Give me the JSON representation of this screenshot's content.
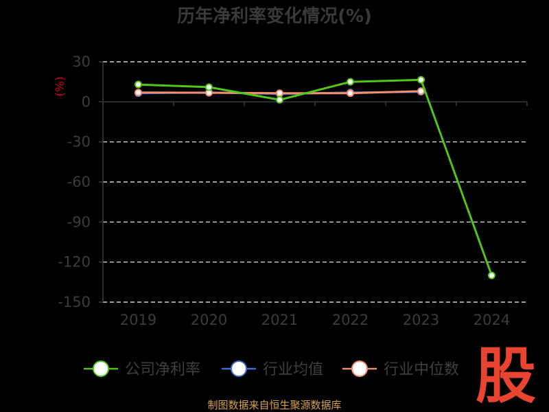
{
  "chart_data": {
    "type": "line",
    "title": "历年净利率变化情况(%)",
    "ylabel": "(%)",
    "xlabel": "",
    "categories": [
      "2019",
      "2020",
      "2021",
      "2022",
      "2023",
      "2024"
    ],
    "y_ticks": [
      "30",
      "0",
      "-30",
      "-60",
      "-90",
      "-120",
      "-150"
    ],
    "y_tick_values": [
      30,
      0,
      -30,
      -60,
      -90,
      -120,
      -150
    ],
    "ylim": [
      -150,
      30
    ],
    "grid": true,
    "legend_position": "bottom",
    "series": [
      {
        "name": "公司净利率",
        "color": "#52c41a",
        "values": [
          13.0,
          11.0,
          1.5,
          15.0,
          16.5,
          -130.0
        ]
      },
      {
        "name": "行业均值",
        "color": "#3d6fd6",
        "values": [
          6.5,
          7.0,
          6.0,
          7.0,
          7.5,
          null
        ]
      },
      {
        "name": "行业中位数",
        "color": "#f28e6b",
        "values": [
          7.0,
          6.8,
          6.5,
          6.5,
          8.0,
          null
        ]
      }
    ]
  },
  "footer": {
    "source": "制图数据来自恒生聚源数据库"
  },
  "logo": {
    "text": "股"
  }
}
